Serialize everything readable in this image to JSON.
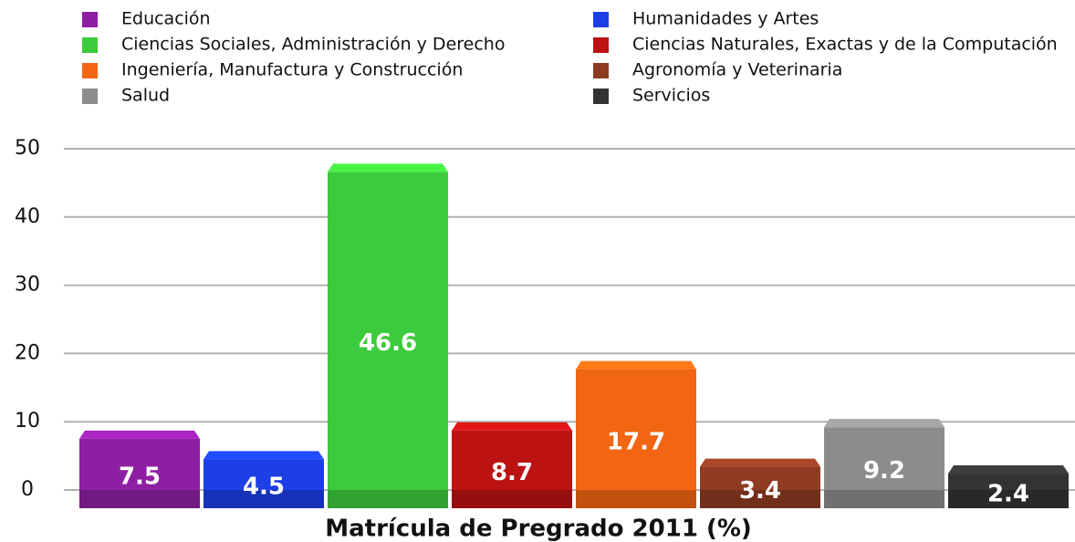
{
  "chart_data": {
    "type": "bar",
    "title": "Matrícula de Pregrado 2011 (%)",
    "series": [
      {
        "name": "Educación",
        "color": "#8e1fa3",
        "values": [
          7.5
        ]
      },
      {
        "name": "Humanidades y Artes",
        "color": "#1c3fe6",
        "values": [
          4.5
        ]
      },
      {
        "name": "Ciencias Sociales, Administración y Derecho",
        "color": "#3ccb3c",
        "values": [
          46.6
        ]
      },
      {
        "name": "Ciencias Naturales, Exactas y de la Computación",
        "color": "#bb1212",
        "values": [
          8.7
        ]
      },
      {
        "name": "Ingeniería, Manufactura y Construcción",
        "color": "#f26512",
        "values": [
          17.7
        ]
      },
      {
        "name": "Agronomía y Veterinaria",
        "color": "#8e3b22",
        "values": [
          3.4
        ]
      },
      {
        "name": "Salud",
        "color": "#8c8c8c",
        "values": [
          9.2
        ]
      },
      {
        "name": "Servicios",
        "color": "#333333",
        "values": [
          2.4
        ]
      }
    ],
    "ylim": [
      0,
      50
    ],
    "yticks": [
      0,
      10,
      20,
      30,
      40,
      50
    ],
    "grid": true
  }
}
